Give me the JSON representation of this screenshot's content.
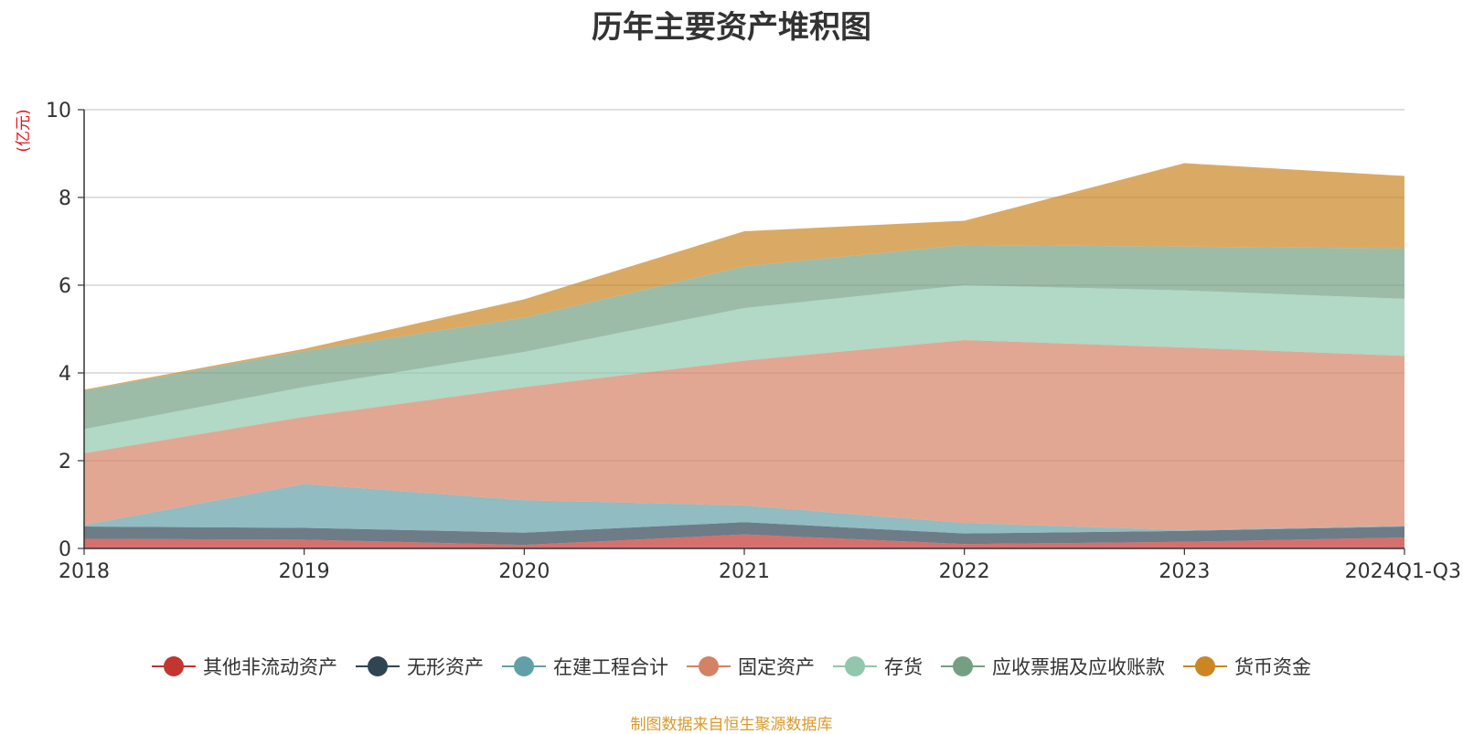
{
  "chart_data": {
    "type": "area",
    "stacked": true,
    "title": "历年主要资产堆积图",
    "ylabel": "(亿元)",
    "xlabel": "",
    "categories": [
      "2018",
      "2019",
      "2020",
      "2021",
      "2022",
      "2023",
      "2024Q1-Q3"
    ],
    "ylim": [
      0,
      10
    ],
    "yticks": [
      0,
      2,
      4,
      6,
      8,
      10
    ],
    "grid": true,
    "legend_position": "bottom",
    "series": [
      {
        "name": "其他非流动资产",
        "color": "#c23531",
        "values": [
          0.22,
          0.2,
          0.08,
          0.32,
          0.1,
          0.15,
          0.25
        ]
      },
      {
        "name": "无形资产",
        "color": "#2f4554",
        "values": [
          0.28,
          0.27,
          0.28,
          0.28,
          0.24,
          0.25,
          0.25
        ]
      },
      {
        "name": "在建工程合计",
        "color": "#61a0a8",
        "values": [
          0.03,
          1.0,
          0.74,
          0.38,
          0.24,
          0.02,
          0.02
        ]
      },
      {
        "name": "固定资产",
        "color": "#d48265",
        "values": [
          1.64,
          1.53,
          2.58,
          3.3,
          4.17,
          4.16,
          3.87
        ]
      },
      {
        "name": "存货",
        "color": "#91c7ae",
        "values": [
          0.55,
          0.68,
          0.8,
          1.2,
          1.25,
          1.3,
          1.3
        ]
      },
      {
        "name": "应收票据及应收账款",
        "color": "#749f83",
        "values": [
          0.88,
          0.82,
          0.78,
          0.95,
          0.92,
          1.0,
          1.15
        ]
      },
      {
        "name": "货币资金",
        "color": "#ca8622",
        "values": [
          0.02,
          0.05,
          0.42,
          0.8,
          0.55,
          1.9,
          1.65
        ]
      }
    ]
  },
  "footer": {
    "source": "制图数据来自恒生聚源数据库"
  }
}
